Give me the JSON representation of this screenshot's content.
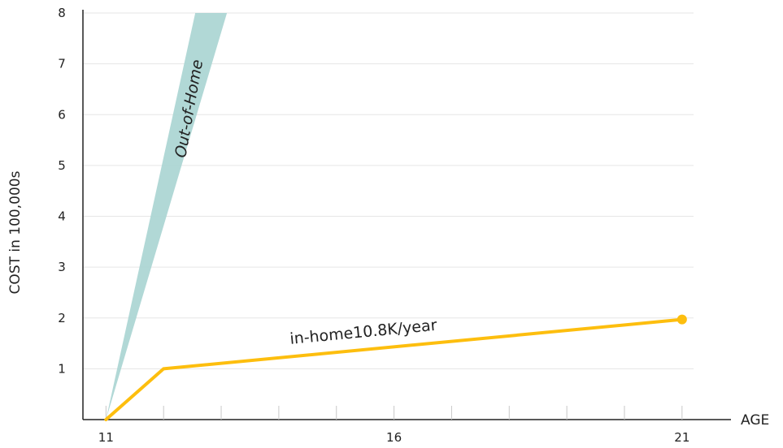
{
  "chart_data": {
    "type": "line",
    "title": "",
    "xlabel": "AGE",
    "ylabel": "COST  in 100,000s",
    "x_ticks": [
      11,
      16,
      21
    ],
    "x_minor_ticks": [
      12,
      13,
      14,
      15,
      17,
      18,
      19,
      20
    ],
    "y_ticks": [
      1,
      2,
      3,
      4,
      5,
      6,
      7,
      8
    ],
    "xlim": [
      10.6,
      21.2
    ],
    "ylim": [
      0,
      8
    ],
    "grid": "horizontal",
    "series": [
      {
        "name": "in-home10.8K/year",
        "kind": "line",
        "color": "#FDBE0E",
        "x": [
          11,
          12,
          21
        ],
        "y": [
          0,
          1,
          1.97
        ],
        "end_marker": true
      },
      {
        "name": "Out-of-Home",
        "kind": "band",
        "color": "#A8D4D2",
        "lower": {
          "x": [
            11,
            13.1
          ],
          "y": [
            0,
            8
          ]
        },
        "upper": {
          "x": [
            11,
            12.55
          ],
          "y": [
            0,
            8
          ]
        }
      }
    ]
  },
  "colors": {
    "axis": "#222222",
    "grid": "#e6e6e6",
    "in_home": "#FDBE0E",
    "out_of_home": "#A8D4D2"
  }
}
